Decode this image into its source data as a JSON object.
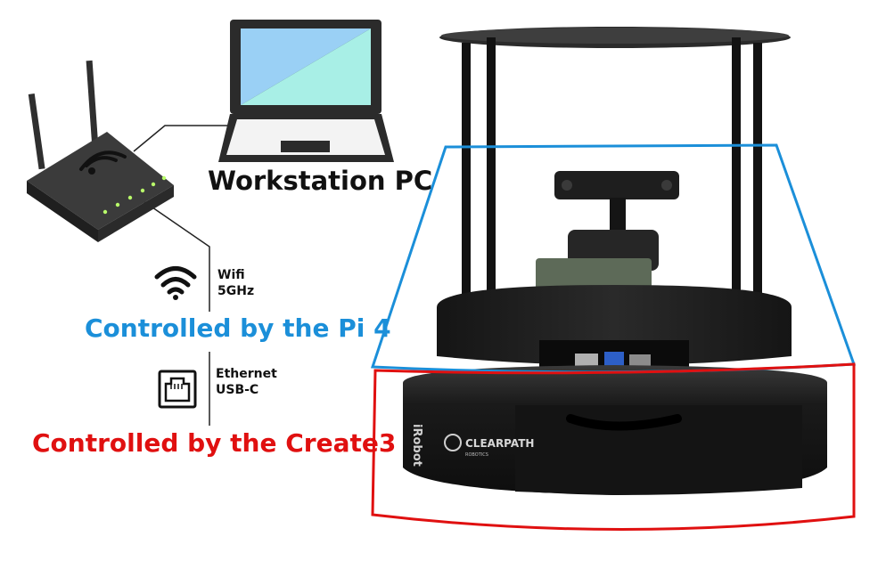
{
  "labels": {
    "workstation": "Workstation PC",
    "wifi_line1": "Wifi",
    "wifi_line2": "5GHz",
    "ethernet_line1": "Ethernet",
    "ethernet_line2": "USB-C",
    "pi4_region": "Controlled by the Pi 4",
    "create3_region": "Controlled by the Create3"
  },
  "robot_text": {
    "brand_left": "iRobot",
    "clearpath": "CLEARPATH",
    "clearpath_sub": "ROBOTICS"
  },
  "colors": {
    "pi4": "#1b8fd9",
    "create3": "#e01010",
    "laptop_screen_a": "#9ad0f5",
    "laptop_screen_b": "#a8efe6",
    "robot_body": "#1c1c1c"
  },
  "icons": [
    "router-icon",
    "laptop-icon",
    "wifi-icon",
    "ethernet-port-icon",
    "robot-image"
  ]
}
